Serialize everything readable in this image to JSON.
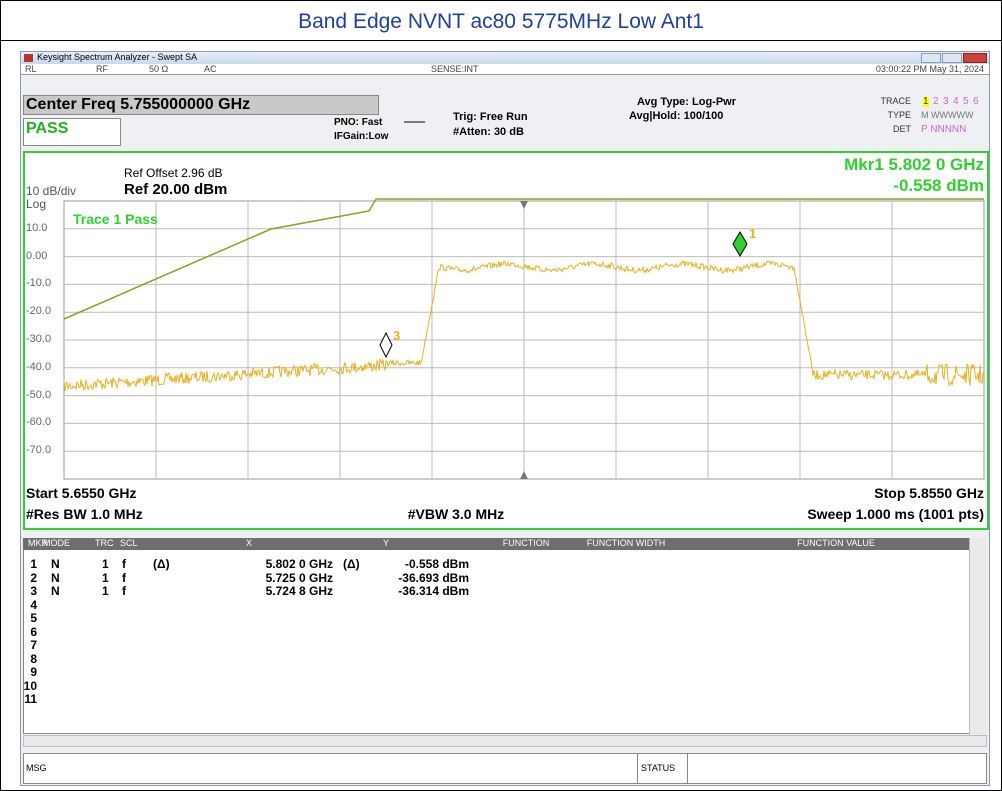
{
  "title": "Band Edge NVNT ac80 5775MHz Low Ant1",
  "window": {
    "title": "Keysight Spectrum Analyzer - Swept SA",
    "status_bar": [
      "RL",
      "RF",
      "50 Ω",
      "AC",
      "SENSE:INT",
      "03:00:22 PM May 31, 2024"
    ]
  },
  "settings": {
    "center_freq": "Center Freq 5.755000000 GHz",
    "pass": "PASS",
    "pno": "PNO: Fast",
    "ifgain": "IFGain:Low",
    "trig": "Trig: Free Run",
    "atten": "#Atten: 30 dB",
    "avg_type": "Avg Type: Log-Pwr",
    "avg_hold": "Avg|Hold: 100/100",
    "trace_label": "TRACE",
    "trace_nums": [
      "1",
      "2",
      "3",
      "4",
      "5",
      "6"
    ],
    "type_label": "TYPE",
    "type_value": "M WWWWW",
    "det_label": "DET",
    "det_value": "P NNNNN"
  },
  "plot": {
    "ref_offset": "Ref Offset 2.96 dB",
    "scale": "10 dB/div",
    "ref_level": "Ref 20.00 dBm",
    "log": "Log",
    "marker_freq": "Mkr1 5.802 0 GHz",
    "marker_level": "-0.558 dBm",
    "trace_status": "Trace 1 Pass",
    "y_labels": [
      "10.0",
      "0.00",
      "-10.0",
      "-20.0",
      "-30.0",
      "-40.0",
      "-50.0",
      "-60.0",
      "-70.0"
    ],
    "marker_labels": [
      "1",
      "3"
    ],
    "start": "Start 5.6550 GHz",
    "stop": "Stop 5.8550 GHz",
    "res_bw": "#Res BW 1.0 MHz",
    "vbw": "#VBW 3.0 MHz",
    "sweep": "Sweep  1.000 ms (1001 pts)"
  },
  "marker_table": {
    "headers": [
      "MKR",
      "MODE",
      "TRC",
      "SCL",
      "X",
      "Y",
      "FUNCTION",
      "FUNCTION WIDTH",
      "FUNCTION VALUE"
    ],
    "rows": [
      {
        "mkr": "1",
        "mode": "N",
        "trc": "1",
        "scl": "f",
        "x_mode": "(Δ)",
        "x": "5.802 0 GHz",
        "y_mode": "(Δ)",
        "y": "-0.558 dBm"
      },
      {
        "mkr": "2",
        "mode": "N",
        "trc": "1",
        "scl": "f",
        "x": "5.725 0 GHz",
        "y": "-36.693 dBm"
      },
      {
        "mkr": "3",
        "mode": "N",
        "trc": "1",
        "scl": "f",
        "x": "5.724 8 GHz",
        "y": "-36.314 dBm"
      },
      {
        "mkr": "4"
      },
      {
        "mkr": "5"
      },
      {
        "mkr": "6"
      },
      {
        "mkr": "7"
      },
      {
        "mkr": "8"
      },
      {
        "mkr": "9"
      },
      {
        "mkr": "10"
      },
      {
        "mkr": "11"
      }
    ]
  },
  "bottom": {
    "msg": "MSG",
    "status": "STATUS"
  }
}
